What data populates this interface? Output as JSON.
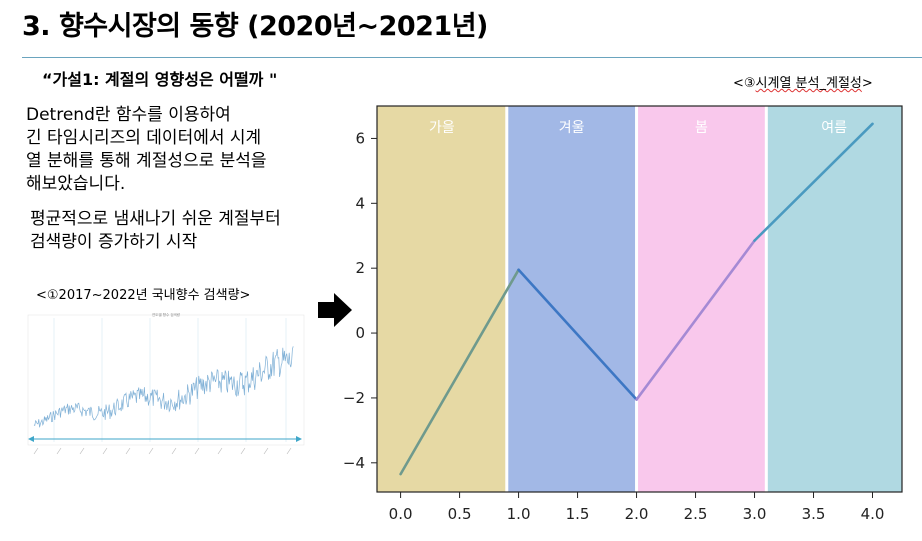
{
  "slide": {
    "title": "3. 향수시장의 동향 (2020년~2021년)",
    "hypothesis": "“가설1: 계절의 영향성은 어떨까 \"",
    "paragraph1": "Detrend란 함수를 이용하여\n긴 타임시리즈의 데이터에서 시계\n열 분해를 통해 계절성으로 분석을\n해보았습니다.",
    "paragraph2": "평균적으로 냄새나기 쉬운 계절부터\n검색량이 증가하기 시작",
    "thumb_caption": "<①2017~2022년 국내향수 검색량>",
    "chart_caption_prefix": "<③",
    "chart_caption_body": "시계열 분석_계절성",
    "chart_caption_suffix": ">",
    "arrow_icon": "arrow-right-icon"
  },
  "thumbnail": {
    "title": "연도별 향수 검색량",
    "line_color": "#7fb0d6",
    "arrow_color": "#3ea6c9"
  },
  "chart_data": {
    "type": "line",
    "x": [
      0.0,
      1.0,
      2.0,
      3.0,
      4.0
    ],
    "y": [
      -4.35,
      1.95,
      -2.05,
      2.85,
      6.45
    ],
    "xlim": [
      -0.2,
      4.25
    ],
    "ylim": [
      -4.9,
      7.0
    ],
    "xticks": [
      "0.0",
      "0.5",
      "1.0",
      "1.5",
      "2.0",
      "2.5",
      "3.0",
      "3.5",
      "4.0"
    ],
    "xtick_values": [
      0.0,
      0.5,
      1.0,
      1.5,
      2.0,
      2.5,
      3.0,
      3.5,
      4.0
    ],
    "yticks": [
      "−4",
      "−2",
      "0",
      "2",
      "4",
      "6"
    ],
    "ytick_values": [
      -4,
      -2,
      0,
      2,
      4,
      6
    ],
    "seasons": [
      {
        "label": "가을",
        "from": -0.2,
        "to": 0.9,
        "color": "#e6d9a4"
      },
      {
        "label": "겨울",
        "from": 0.9,
        "to": 2.0,
        "color": "#a2b8e6"
      },
      {
        "label": "봄",
        "from": 2.0,
        "to": 3.1,
        "color": "#f9c8ec"
      },
      {
        "label": "여름",
        "from": 3.1,
        "to": 4.25,
        "color": "#b0d9e2"
      }
    ],
    "segment_colors": [
      "#6f9a8d",
      "#3d77c4",
      "#a58ad4",
      "#4a9ac0"
    ],
    "grid": false,
    "legend": "none"
  }
}
